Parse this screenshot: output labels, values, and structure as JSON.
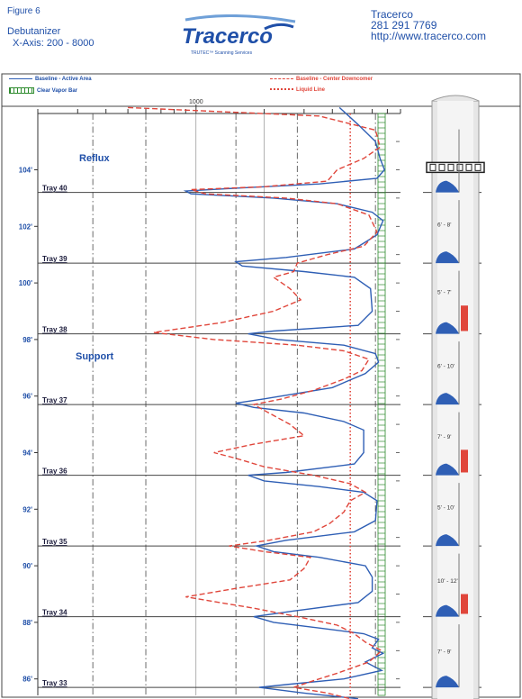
{
  "header": {
    "figure": "Figure 6",
    "title": "Debutanizer",
    "x_axis": "X-Axis: 200 - 8000",
    "brand_name": "Tracerco",
    "brand_sub": "TRUTEC™ Scanning Services",
    "contact_name": "Tracerco",
    "contact_phone": "281 291 7769",
    "contact_url": "http://www.tracerco.com"
  },
  "legend": {
    "active": "Baseline - Active Area",
    "downcomer": "Baseline - Center Downcomer",
    "vapor": "Clear Vapor Bar",
    "liquid": "Liquid Line"
  },
  "colors": {
    "active": "#2f5fb5",
    "downcomer": "#e0463b",
    "liquid": "#e0463b",
    "vapor": "#2e8b2e",
    "text_blue": "#1f4fa8"
  },
  "chart_data": {
    "type": "line",
    "x_range": [
      200,
      8000
    ],
    "x_tick_label": "1000",
    "y_ticks": [
      {
        "v": 86,
        "label": "86'"
      },
      {
        "v": 88,
        "label": "88'"
      },
      {
        "v": 90,
        "label": "90'"
      },
      {
        "v": 92,
        "label": "92'"
      },
      {
        "v": 94,
        "label": "94'"
      },
      {
        "v": 96,
        "label": "96'"
      },
      {
        "v": 98,
        "label": "98'"
      },
      {
        "v": 100,
        "label": "100'"
      },
      {
        "v": 102,
        "label": "102'"
      },
      {
        "v": 104,
        "label": "104'"
      }
    ],
    "trays": [
      {
        "label": "Tray 40",
        "y": 103.2
      },
      {
        "label": "Tray 39",
        "y": 100.7
      },
      {
        "label": "Tray 38",
        "y": 98.2
      },
      {
        "label": "Tray 37",
        "y": 95.7
      },
      {
        "label": "Tray 36",
        "y": 93.2
      },
      {
        "label": "Tray 35",
        "y": 90.7
      },
      {
        "label": "Tray 34",
        "y": 88.2
      },
      {
        "label": "Tray 33",
        "y": 85.7
      }
    ],
    "annotations": [
      {
        "text": "Reflux",
        "y": 104.3
      },
      {
        "text": "Support",
        "y": 97.3
      }
    ],
    "series": [
      {
        "name": "Baseline - Active Area",
        "style": "solid",
        "points": [
          [
            4300,
            106.2
          ],
          [
            5200,
            105.6
          ],
          [
            6200,
            105.0
          ],
          [
            6500,
            104.4
          ],
          [
            6800,
            104.0
          ],
          [
            6300,
            103.7
          ],
          [
            3500,
            103.5
          ],
          [
            1500,
            103.35
          ],
          [
            900,
            103.25
          ],
          [
            950,
            103.15
          ],
          [
            2200,
            103.0
          ],
          [
            4200,
            102.8
          ],
          [
            6000,
            102.5
          ],
          [
            6700,
            102.2
          ],
          [
            6300,
            101.7
          ],
          [
            5000,
            101.2
          ],
          [
            2500,
            100.9
          ],
          [
            1500,
            100.75
          ],
          [
            1600,
            100.6
          ],
          [
            3000,
            100.4
          ],
          [
            5000,
            100.2
          ],
          [
            5900,
            99.8
          ],
          [
            6000,
            99.0
          ],
          [
            5200,
            98.5
          ],
          [
            2200,
            98.3
          ],
          [
            1700,
            98.2
          ],
          [
            2300,
            98.0
          ],
          [
            4500,
            97.8
          ],
          [
            6200,
            97.5
          ],
          [
            6400,
            97.2
          ],
          [
            5600,
            96.8
          ],
          [
            4000,
            96.3
          ],
          [
            2000,
            95.9
          ],
          [
            1500,
            95.75
          ],
          [
            1800,
            95.6
          ],
          [
            3000,
            95.4
          ],
          [
            4500,
            95.1
          ],
          [
            5500,
            94.8
          ],
          [
            5500,
            94.0
          ],
          [
            5000,
            93.6
          ],
          [
            2500,
            93.3
          ],
          [
            1700,
            93.2
          ],
          [
            2000,
            93.0
          ],
          [
            3500,
            92.8
          ],
          [
            5500,
            92.6
          ],
          [
            6300,
            92.3
          ],
          [
            6200,
            91.6
          ],
          [
            5000,
            91.2
          ],
          [
            2500,
            90.9
          ],
          [
            1850,
            90.7
          ],
          [
            2200,
            90.5
          ],
          [
            3500,
            90.3
          ],
          [
            5600,
            90.0
          ],
          [
            6000,
            89.6
          ],
          [
            6000,
            89.1
          ],
          [
            5200,
            88.7
          ],
          [
            2700,
            88.4
          ],
          [
            1800,
            88.2
          ],
          [
            2200,
            88.0
          ],
          [
            3500,
            87.8
          ],
          [
            5500,
            87.6
          ],
          [
            6400,
            87.4
          ],
          [
            6000,
            87.1
          ],
          [
            6700,
            86.9
          ],
          [
            5600,
            86.6
          ],
          [
            6600,
            86.3
          ],
          [
            4500,
            86.0
          ],
          [
            2500,
            85.8
          ],
          [
            1900,
            85.7
          ],
          [
            3000,
            85.5
          ],
          [
            5200,
            85.3
          ]
        ]
      },
      {
        "name": "Baseline - Center Downcomer",
        "style": "dashed",
        "points": [
          [
            500,
            106.2
          ],
          [
            3500,
            105.9
          ],
          [
            6200,
            105.4
          ],
          [
            6500,
            104.8
          ],
          [
            5500,
            104.4
          ],
          [
            4200,
            104.0
          ],
          [
            3800,
            103.6
          ],
          [
            2000,
            103.4
          ],
          [
            950,
            103.3
          ],
          [
            1100,
            103.15
          ],
          [
            2500,
            103.0
          ],
          [
            4200,
            102.8
          ],
          [
            5800,
            102.4
          ],
          [
            6300,
            101.8
          ],
          [
            5500,
            101.3
          ],
          [
            3800,
            101.0
          ],
          [
            2800,
            100.7
          ],
          [
            2700,
            100.4
          ],
          [
            2200,
            100.2
          ],
          [
            2600,
            99.8
          ],
          [
            2900,
            99.4
          ],
          [
            2200,
            99.0
          ],
          [
            1300,
            98.6
          ],
          [
            650,
            98.25
          ],
          [
            1200,
            98.0
          ],
          [
            2800,
            97.8
          ],
          [
            4500,
            97.6
          ],
          [
            5800,
            97.3
          ],
          [
            5400,
            96.9
          ],
          [
            4500,
            96.6
          ],
          [
            3300,
            96.2
          ],
          [
            2400,
            95.9
          ],
          [
            1800,
            95.7
          ],
          [
            2100,
            95.4
          ],
          [
            2600,
            95.0
          ],
          [
            3000,
            94.6
          ],
          [
            1800,
            94.3
          ],
          [
            1200,
            94.0
          ],
          [
            1500,
            93.8
          ],
          [
            2000,
            93.5
          ],
          [
            3300,
            93.2
          ],
          [
            4800,
            92.9
          ],
          [
            5600,
            92.6
          ],
          [
            4800,
            92.3
          ],
          [
            4500,
            91.9
          ],
          [
            3900,
            91.5
          ],
          [
            3300,
            91.2
          ],
          [
            2100,
            90.9
          ],
          [
            1400,
            90.7
          ],
          [
            2000,
            90.5
          ],
          [
            3200,
            90.3
          ],
          [
            3000,
            89.9
          ],
          [
            2600,
            89.5
          ],
          [
            1500,
            89.2
          ],
          [
            900,
            88.9
          ],
          [
            1800,
            88.5
          ],
          [
            2800,
            88.2
          ],
          [
            4200,
            87.9
          ],
          [
            5000,
            87.6
          ],
          [
            5600,
            87.3
          ],
          [
            6600,
            87.0
          ],
          [
            5800,
            86.6
          ],
          [
            4200,
            86.2
          ],
          [
            3200,
            85.9
          ],
          [
            2700,
            85.7
          ],
          [
            3800,
            85.5
          ],
          [
            4800,
            85.3
          ]
        ]
      }
    ],
    "liquid_line_x": 4800,
    "vertical_lines": [
      {
        "x": 350,
        "style": "dashdot"
      },
      {
        "x": 600,
        "style": "dashdot"
      },
      {
        "x": 1500,
        "style": "dashdot"
      },
      {
        "x": 2800,
        "style": "dashdot"
      },
      {
        "x": 6200,
        "style": "dashdot"
      }
    ],
    "column": {
      "region_labels": [
        {
          "text": "6' - 8'",
          "y": 102.0
        },
        {
          "text": "5' - 7'",
          "y": 99.6
        },
        {
          "text": "6' - 10'",
          "y": 97.0
        },
        {
          "text": "7' - 9'",
          "y": 94.5
        },
        {
          "text": "5' - 10'",
          "y": 92.0
        },
        {
          "text": "10' - 12'",
          "y": 89.4
        },
        {
          "text": "7' - 9'",
          "y": 86.9
        }
      ],
      "red_bars": [
        [
          99.2,
          98.3
        ],
        [
          94.1,
          93.3
        ],
        [
          89.0,
          88.3
        ]
      ]
    }
  }
}
